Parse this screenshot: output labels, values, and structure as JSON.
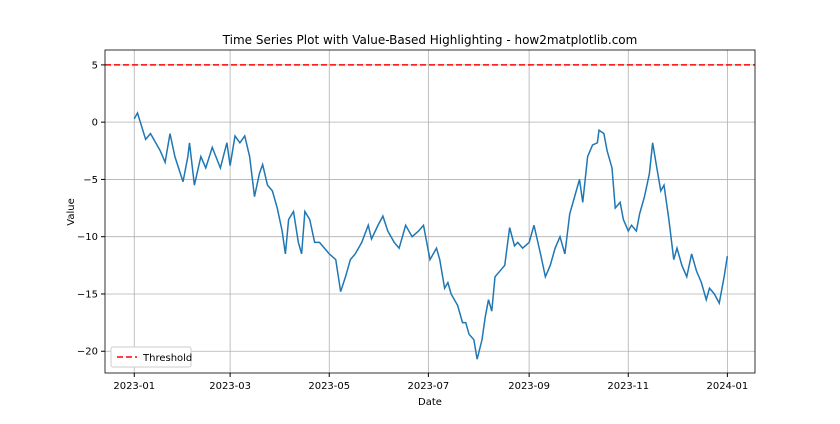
{
  "chart_data": {
    "type": "line",
    "title": "Time Series Plot with Value-Based Highlighting - how2matplotlib.com",
    "xlabel": "Date",
    "ylabel": "Value",
    "x": [
      0,
      2,
      7,
      10,
      16,
      19,
      22,
      25,
      30,
      33,
      34,
      37,
      41,
      44,
      48,
      53,
      57,
      59,
      62,
      65,
      68,
      71,
      74,
      77,
      79,
      82,
      85,
      88,
      91,
      93,
      95,
      98,
      101,
      103,
      105,
      108,
      111,
      114,
      117,
      120,
      124,
      127,
      130,
      133,
      136,
      140,
      144,
      146,
      150,
      153,
      156,
      160,
      163,
      167,
      171,
      175,
      178,
      182,
      186,
      188,
      191,
      193,
      195,
      199,
      202,
      204,
      206,
      209,
      211,
      214,
      216,
      218,
      220,
      222,
      225,
      228,
      231,
      234,
      236,
      239,
      243,
      246,
      250,
      253,
      256,
      259,
      262,
      265,
      268,
      271,
      274,
      276,
      279,
      282,
      285,
      286,
      289,
      291,
      294,
      296,
      299,
      301,
      304,
      306,
      309,
      311,
      314,
      317,
      319,
      321,
      324,
      326,
      329,
      332,
      334,
      337,
      340,
      343,
      346,
      349,
      352,
      354,
      357,
      360,
      363,
      365
    ],
    "series": [
      {
        "name": "Value",
        "color": "#1f77b4",
        "values": [
          0.3,
          0.8,
          -1.5,
          -1.0,
          -2.5,
          -3.5,
          -1.0,
          -3.0,
          -5.2,
          -3.0,
          -1.8,
          -5.5,
          -3.0,
          -4.0,
          -2.2,
          -4.0,
          -1.8,
          -3.8,
          -1.2,
          -1.8,
          -1.2,
          -3.0,
          -6.5,
          -4.5,
          -3.7,
          -5.5,
          -6.0,
          -7.5,
          -9.5,
          -11.5,
          -8.5,
          -7.8,
          -10.5,
          -11.5,
          -7.8,
          -8.5,
          -10.5,
          -10.5,
          -11.0,
          -11.5,
          -12.0,
          -14.8,
          -13.5,
          -12.0,
          -11.5,
          -10.5,
          -9.0,
          -10.2,
          -9.0,
          -8.2,
          -9.5,
          -10.5,
          -11.0,
          -9.0,
          -10.0,
          -9.5,
          -9.0,
          -12.0,
          -11.0,
          -12.0,
          -14.5,
          -14.0,
          -15.0,
          -16.0,
          -17.5,
          -17.5,
          -18.5,
          -19.0,
          -20.7,
          -19.0,
          -17.0,
          -15.5,
          -16.5,
          -13.5,
          -13.0,
          -12.5,
          -9.2,
          -10.8,
          -10.5,
          -11.0,
          -10.5,
          -9.0,
          -11.5,
          -13.5,
          -12.5,
          -11.0,
          -10.0,
          -11.5,
          -8.0,
          -6.5,
          -5.0,
          -7.0,
          -3.0,
          -2.0,
          -1.8,
          -0.7,
          -1.0,
          -2.5,
          -4.0,
          -7.5,
          -7.0,
          -8.5,
          -9.5,
          -9.0,
          -9.5,
          -8.0,
          -6.5,
          -4.5,
          -1.8,
          -3.5,
          -6.0,
          -5.5,
          -8.5,
          -12.0,
          -11.0,
          -12.5,
          -13.5,
          -11.5,
          -13.0,
          -14.0,
          -15.5,
          -14.5,
          -15.0,
          -15.8,
          -13.5,
          -11.7
        ]
      }
    ],
    "threshold": {
      "name": "Threshold",
      "value": 5,
      "color": "#ff0000"
    },
    "xlim": [
      -18,
      382
    ],
    "ylim": [
      -21.9,
      6.3
    ],
    "xticks": [
      {
        "value": 0,
        "label": "2023-01"
      },
      {
        "value": 59,
        "label": "2023-03"
      },
      {
        "value": 120,
        "label": "2023-05"
      },
      {
        "value": 181,
        "label": "2023-07"
      },
      {
        "value": 243,
        "label": "2023-09"
      },
      {
        "value": 304,
        "label": "2023-11"
      },
      {
        "value": 365,
        "label": "2024-01"
      }
    ],
    "yticks": [
      {
        "value": -20,
        "label": "−20"
      },
      {
        "value": -15,
        "label": "−15"
      },
      {
        "value": -10,
        "label": "−10"
      },
      {
        "value": -5,
        "label": "−5"
      },
      0,
      5
    ],
    "grid": true,
    "legend": "lower left"
  }
}
